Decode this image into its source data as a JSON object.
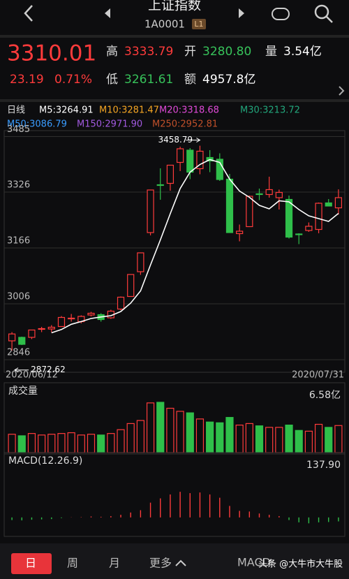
{
  "top_bar": {
    "title": "上证指数",
    "code": "1A0001",
    "badge": "L1"
  },
  "quote": {
    "price": "3310.01",
    "change": "23.19",
    "change_pct": "0.71%",
    "high_label": "高",
    "high": "3333.79",
    "open_label": "开",
    "open": "3280.80",
    "volume_label": "量",
    "volume": "3.54亿",
    "low_label": "低",
    "low": "3261.61",
    "amount_label": "额",
    "amount": "4957.8亿"
  },
  "indicators": {
    "period": "日线",
    "ma": [
      {
        "label": "M5:3264.91",
        "color": "#ffffff"
      },
      {
        "label": "M10:3281.47",
        "color": "#f5a623"
      },
      {
        "label": "M20:3318.68",
        "color": "#e04ad8"
      },
      {
        "label": "M30:3213.72",
        "color": "#22a77c"
      },
      {
        "label": "M50:3086.79",
        "color": "#3a9cff"
      },
      {
        "label": "M150:2971.90",
        "color": "#a25ae0"
      },
      {
        "label": "M250:2952.81",
        "color": "#c0502a"
      }
    ]
  },
  "chart_data": [
    {
      "type": "candlestick",
      "categories": [
        "2020/06/12",
        null,
        null,
        null,
        null,
        null,
        null,
        null,
        null,
        null,
        null,
        null,
        null,
        null,
        null,
        null,
        null,
        null,
        null,
        null,
        null,
        null,
        null,
        null,
        null,
        null,
        null,
        null,
        null,
        null,
        null,
        null,
        null,
        "2020/07/31"
      ],
      "open": [
        2900,
        2910,
        2910,
        2935,
        2934,
        2941,
        2965,
        2955,
        2974,
        2975,
        2966,
        2991,
        3027,
        3098,
        3210,
        3347,
        3351,
        3411,
        3446,
        3393,
        3425,
        3420,
        3363,
        3207,
        3227,
        3321,
        3319,
        3310,
        3305,
        3206,
        3216,
        3219,
        3295,
        3280.8
      ],
      "high": [
        2925,
        2912,
        2932,
        2940,
        2945,
        2971,
        2977,
        2973,
        2983,
        2979,
        2989,
        3027,
        3091,
        3152,
        3333,
        3394,
        3404,
        3456,
        3452,
        3458.79,
        3446,
        3437,
        3378,
        3233,
        3316,
        3336,
        3370,
        3333,
        3316,
        3208,
        3239,
        3296,
        3306,
        3333.79
      ],
      "low": [
        2872.62,
        2888,
        2905,
        2925,
        2925,
        2940,
        2955,
        2950,
        2970,
        2955,
        2963,
        2988,
        3026,
        3089,
        3202,
        3304,
        3330,
        3386,
        3363,
        3377,
        3383,
        3358,
        3209,
        3185,
        3227,
        3303,
        3310,
        3276,
        3193,
        3177,
        3212,
        3208,
        3285,
        3261.61
      ],
      "close": [
        2919.7,
        2890,
        2931,
        2935,
        2939,
        2967,
        2965,
        2970,
        2979,
        2961,
        2985,
        3025,
        3090,
        3152,
        3332,
        3345,
        3403,
        3450,
        3383,
        3443,
        3415,
        3362,
        3210,
        3214,
        3314,
        3320,
        3333,
        3325,
        3197,
        3205,
        3228,
        3294,
        3286,
        3310.01
      ],
      "ma5": [
        null,
        null,
        null,
        null,
        2922.9,
        2932.4,
        2947.4,
        2955.2,
        2964,
        2968.4,
        2972,
        2984,
        3008,
        3043,
        3117,
        3189,
        3264,
        3336,
        3383,
        3405,
        3419,
        3411,
        3363,
        3329,
        3311,
        3288,
        3278,
        3301,
        3298,
        3276,
        3258,
        3250,
        3242,
        3264.91
      ],
      "ma5_color": "#ffffff",
      "up_color": "#ff3b3b",
      "down_color": "#2fbf4a",
      "ylim": [
        2826,
        3486
      ],
      "yticks": [
        3485,
        3326,
        3166,
        3006,
        2846
      ],
      "grid": true,
      "annotations": [
        {
          "text": "3458.79",
          "index": 19,
          "value": 3458.79
        },
        {
          "text": "2872.62",
          "index": 0,
          "value": 2872.62
        }
      ]
    },
    {
      "type": "bar",
      "title": "成交量",
      "values": [
        2.4,
        2.2,
        2.5,
        2.3,
        2.4,
        2.5,
        2.6,
        2.3,
        2.4,
        2.3,
        2.5,
        3.0,
        3.8,
        4.2,
        6.5,
        6.58,
        5.8,
        5.4,
        5.2,
        4.4,
        4.0,
        3.9,
        4.6,
        3.6,
        3.8,
        3.5,
        3.3,
        3.3,
        3.6,
        2.9,
        2.8,
        3.7,
        3.3,
        3.54
      ],
      "ylim": [
        0,
        6.58
      ],
      "yticks": [
        {
          "value": 6.58,
          "label": "6.58亿"
        }
      ]
    },
    {
      "type": "bar",
      "title": "MACD(12.26.9)",
      "values": [
        -8,
        -9,
        -7,
        -6,
        -5,
        -2,
        0.5,
        1,
        3,
        2,
        4,
        8,
        15,
        22,
        45,
        58,
        70,
        78,
        74,
        76,
        70,
        60,
        35,
        20,
        18,
        12,
        8,
        4,
        -8,
        -15,
        -18,
        -15,
        -14,
        -12
      ],
      "ylim": [
        -45,
        137.9
      ],
      "yticks": [
        {
          "value": 137.9,
          "label": "137.90"
        }
      ]
    }
  ],
  "bottom_bar": {
    "tabs": [
      "日",
      "周",
      "月",
      "更多"
    ],
    "overlay": "MACD",
    "watermark": "头条 @大牛市大牛股"
  }
}
